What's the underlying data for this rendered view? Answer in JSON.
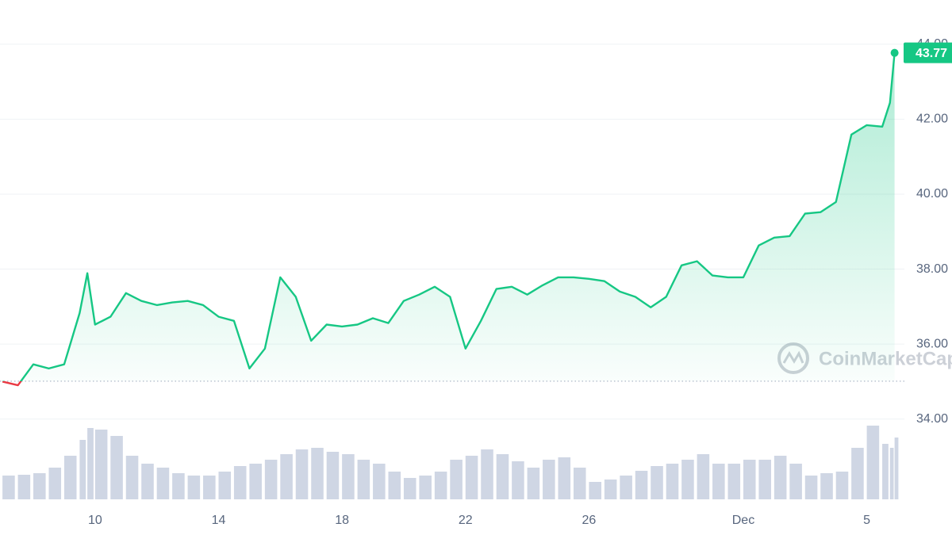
{
  "chart_data": {
    "type": "line",
    "x": [
      7,
      7.5,
      8,
      8.5,
      9,
      9.5,
      9.75,
      10,
      10.5,
      11,
      11.5,
      12,
      12.5,
      13,
      13.5,
      14,
      14.5,
      15,
      15.5,
      16,
      16.5,
      17,
      17.5,
      18,
      18.5,
      19,
      19.5,
      20,
      20.5,
      21,
      21.5,
      22,
      22.5,
      23,
      23.5,
      24,
      24.5,
      25,
      25.5,
      26,
      26.5,
      27,
      27.5,
      28,
      28.5,
      29,
      29.5,
      30,
      30.5,
      31,
      31.5,
      32,
      32.5,
      33,
      33.5,
      34,
      34.5,
      35,
      35.5,
      35.75,
      35.9
    ],
    "series": [
      {
        "color": "#16c784",
        "down_color": "#ea3943",
        "values": [
          35.0,
          34.9,
          35.46,
          35.35,
          35.46,
          36.83,
          37.89,
          36.52,
          36.73,
          37.36,
          37.15,
          37.04,
          37.11,
          37.15,
          37.04,
          36.73,
          36.62,
          35.35,
          35.88,
          37.78,
          37.26,
          36.09,
          36.52,
          36.47,
          36.52,
          36.69,
          36.56,
          37.15,
          37.32,
          37.53,
          37.26,
          35.88,
          36.62,
          37.47,
          37.53,
          37.32,
          37.57,
          37.78,
          37.78,
          37.74,
          37.68,
          37.4,
          37.26,
          36.98,
          37.26,
          38.1,
          38.21,
          37.83,
          37.78,
          37.78,
          38.63,
          38.84,
          38.88,
          39.48,
          39.52,
          39.79,
          41.59,
          41.84,
          41.8,
          42.44,
          43.77
        ]
      }
    ],
    "volume": {
      "color": "#cfd6e4",
      "values": [
        30,
        31,
        33,
        40,
        55,
        75,
        90,
        88,
        80,
        55,
        45,
        40,
        33,
        30,
        30,
        35,
        42,
        45,
        50,
        57,
        63,
        65,
        60,
        57,
        50,
        45,
        35,
        27,
        30,
        35,
        50,
        55,
        63,
        57,
        48,
        40,
        50,
        53,
        40,
        22,
        25,
        30,
        36,
        42,
        45,
        50,
        57,
        45,
        45,
        50,
        50,
        55,
        45,
        30,
        33,
        35,
        65,
        93,
        70,
        65,
        78
      ]
    },
    "baseline": 35.01,
    "last_price": 43.77,
    "watermark": "CoinMarketCap",
    "xlim": [
      6.92,
      37.76
    ],
    "xticks": [
      10,
      14,
      18,
      22,
      26,
      {
        "value": 31,
        "label": "Dec"
      },
      {
        "value": 35,
        "label": "5"
      }
    ],
    "ylim": [
      31.9,
      45.18
    ],
    "yticks": [
      {
        "value": 34,
        "label": "34.00"
      },
      {
        "value": 36,
        "label": "36.00"
      },
      {
        "value": 38,
        "label": "38.00"
      },
      {
        "value": 40,
        "label": "40.00"
      },
      {
        "value": 42,
        "label": "42.00"
      },
      {
        "value": 44,
        "label": "44.00"
      }
    ],
    "grid": true
  }
}
